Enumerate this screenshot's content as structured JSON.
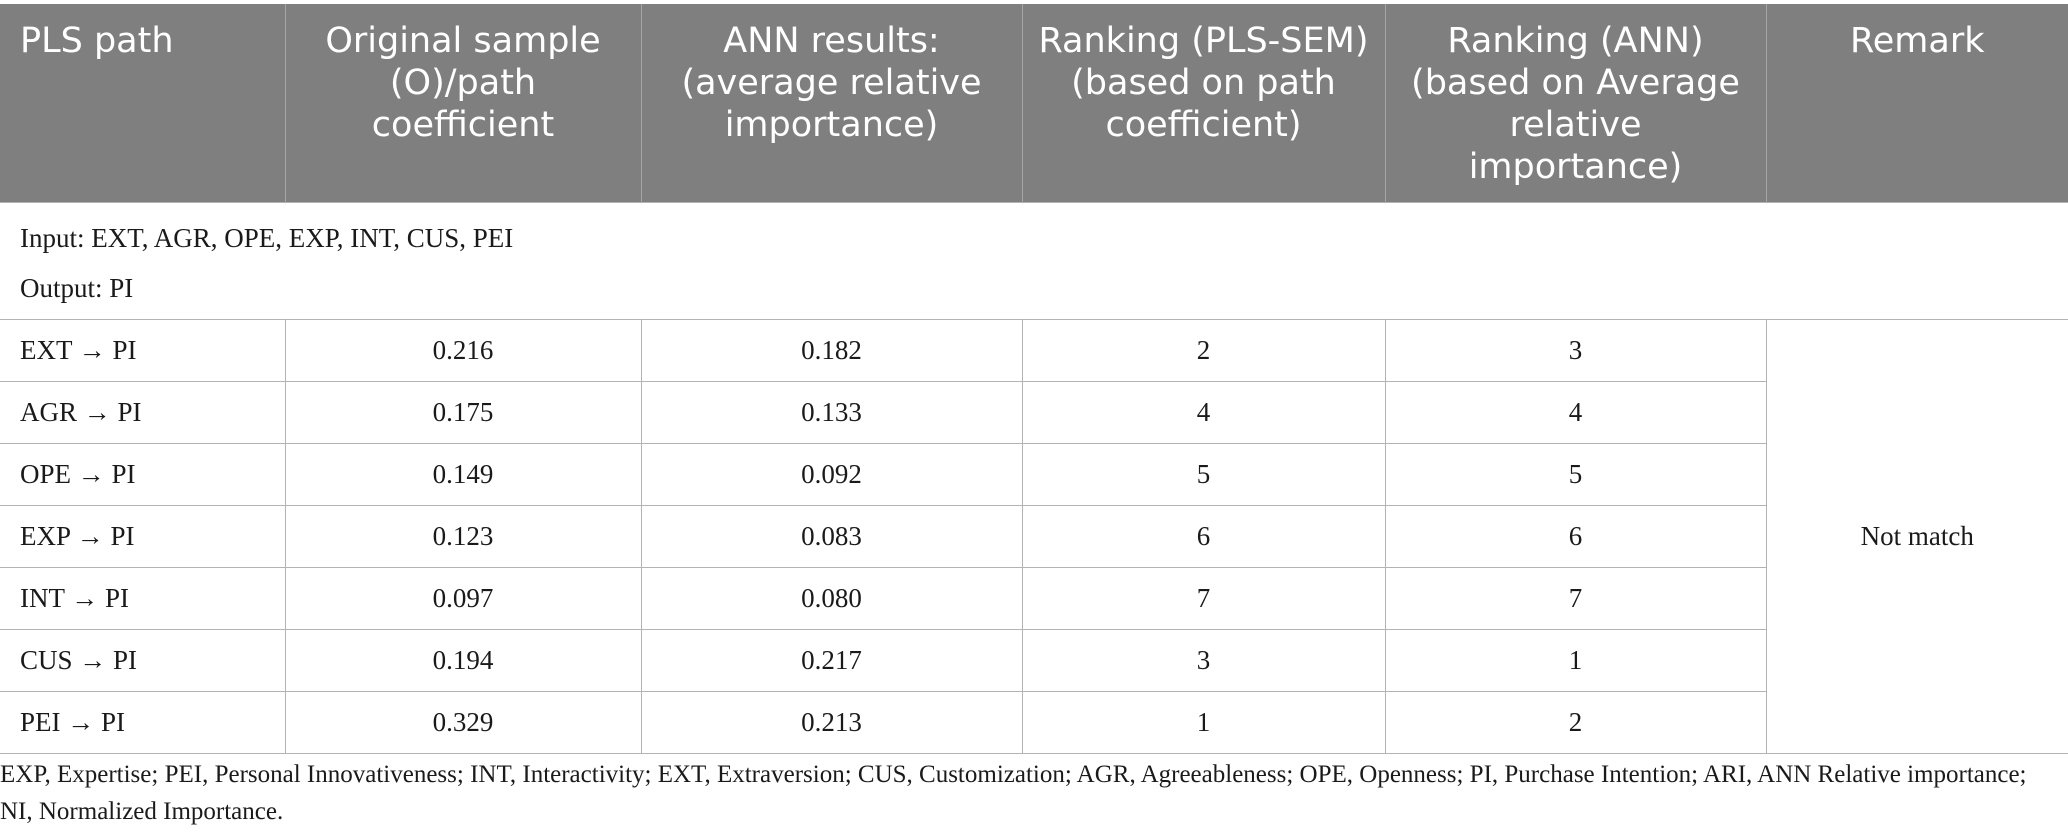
{
  "table": {
    "headers": [
      "PLS path",
      "Original sample (O)/path coefficient",
      "ANN results: (average relative importance)",
      "Ranking (PLS-SEM) (based on path coefficient)",
      "Ranking (ANN) (based on Average relative importance)",
      "Remark"
    ],
    "input_line": "Input: EXT, AGR, OPE, EXP, INT, CUS, PEI",
    "output_line": "Output: PI",
    "rows": [
      {
        "path": "EXT → PI",
        "original": "0.216",
        "ann": "0.182",
        "rank_pls": "2",
        "rank_ann": "3"
      },
      {
        "path": "AGR → PI",
        "original": "0.175",
        "ann": "0.133",
        "rank_pls": "4",
        "rank_ann": "4"
      },
      {
        "path": "OPE → PI",
        "original": "0.149",
        "ann": "0.092",
        "rank_pls": "5",
        "rank_ann": "5"
      },
      {
        "path": "EXP → PI",
        "original": "0.123",
        "ann": "0.083",
        "rank_pls": "6",
        "rank_ann": "6"
      },
      {
        "path": "INT → PI",
        "original": "0.097",
        "ann": "0.080",
        "rank_pls": "7",
        "rank_ann": "7"
      },
      {
        "path": "CUS → PI",
        "original": "0.194",
        "ann": "0.217",
        "rank_pls": "3",
        "rank_ann": "1"
      },
      {
        "path": "PEI → PI",
        "original": "0.329",
        "ann": "0.213",
        "rank_pls": "1",
        "rank_ann": "2"
      }
    ],
    "remark": "Not match"
  },
  "footnote": "EXP, Expertise; PEI, Personal Innovativeness; INT, Interactivity; EXT, Extraversion; CUS, Customization; AGR, Agreeableness; OPE, Openness; PI, Purchase Intention; ARI, ANN Relative importance; NI, Normalized Importance."
}
